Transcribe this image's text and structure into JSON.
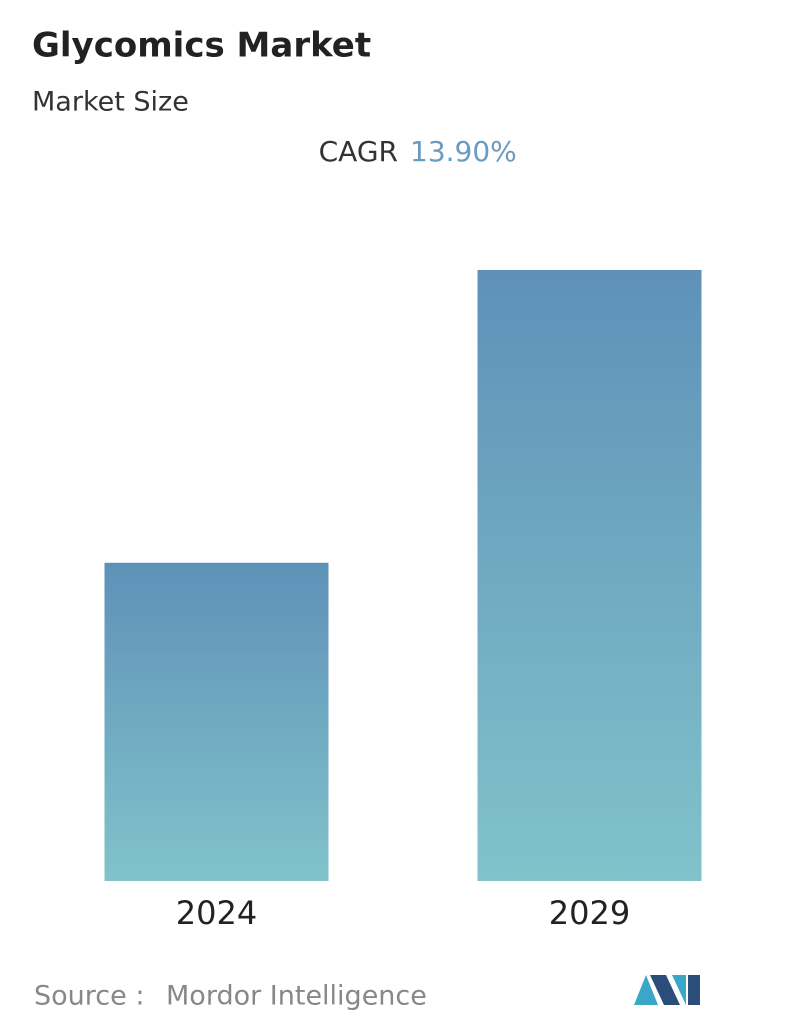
{
  "chart_data": {
    "type": "bar",
    "title": "Glycomics Market",
    "subtitle": "Market Size",
    "cagr_label": "CAGR",
    "cagr_value": "13.90%",
    "categories": [
      "2024",
      "2029"
    ],
    "values": [
      1,
      1.92
    ],
    "color_top": "#5f91b8",
    "color_bottom": "#80c3cb",
    "source_label": "Source :",
    "source": "Mordor Intelligence"
  }
}
